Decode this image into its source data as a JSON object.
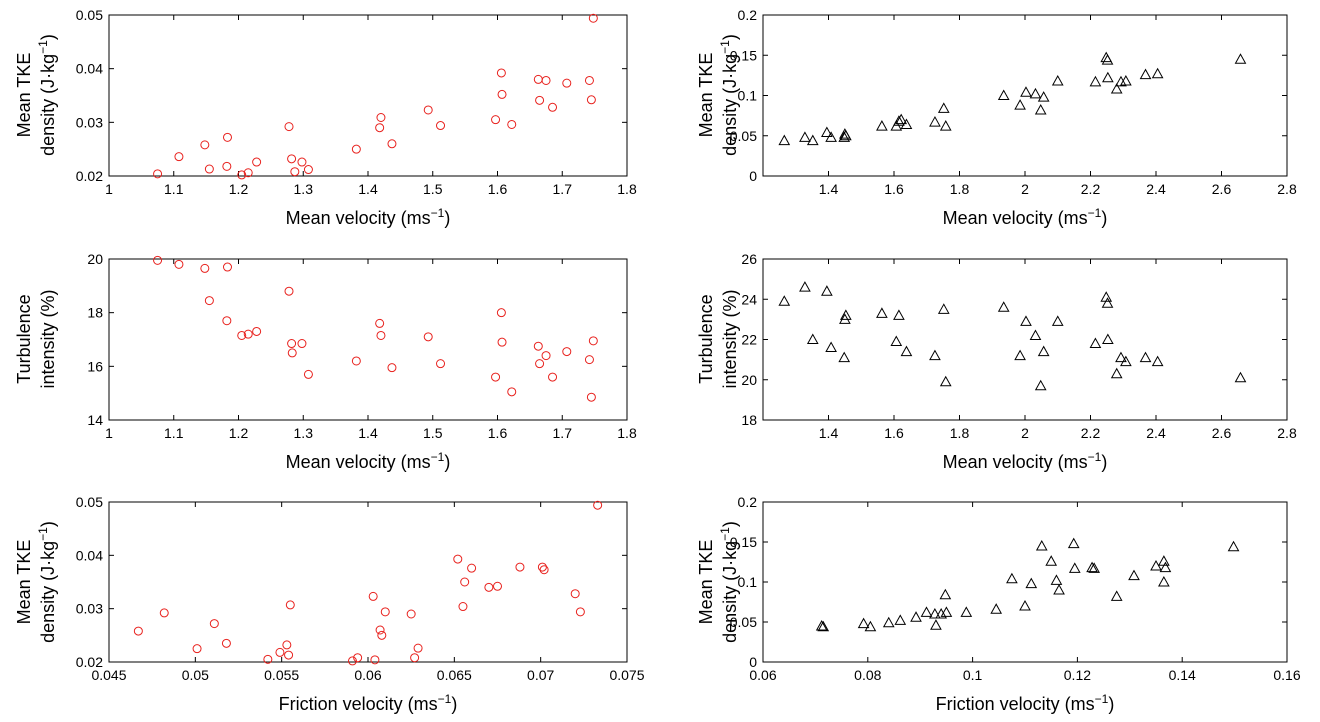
{
  "chart_data": [
    {
      "type": "scatter",
      "xlabel": "Mean velocity (ms",
      "xlabel_sup": "−1",
      "xlabel_end": ")",
      "ylabel_line1": "Mean TKE",
      "ylabel_line2": "density (J·kg",
      "ylabel_sup": "−1",
      "ylabel_end": ")",
      "xlim": [
        1,
        1.8
      ],
      "ylim": [
        0.02,
        0.05
      ],
      "xticks": [
        "1",
        "1.1",
        "1.2",
        "1.3",
        "1.4",
        "1.5",
        "1.6",
        "1.7",
        "1.8"
      ],
      "yticks": [
        "0.02",
        "0.03",
        "0.04",
        "0.05"
      ],
      "marker": "circle",
      "color": "#e8211d",
      "series": [
        {
          "points": [
            [
              1.075,
              0.0204
            ],
            [
              1.108,
              0.0236
            ],
            [
              1.148,
              0.0258
            ],
            [
              1.155,
              0.0213
            ],
            [
              1.182,
              0.0218
            ],
            [
              1.183,
              0.0272
            ],
            [
              1.205,
              0.0202
            ],
            [
              1.215,
              0.0206
            ],
            [
              1.228,
              0.0226
            ],
            [
              1.278,
              0.0292
            ],
            [
              1.282,
              0.0232
            ],
            [
              1.287,
              0.0208
            ],
            [
              1.298,
              0.0226
            ],
            [
              1.308,
              0.0212
            ],
            [
              1.382,
              0.025
            ],
            [
              1.418,
              0.029
            ],
            [
              1.42,
              0.0309
            ],
            [
              1.437,
              0.026
            ],
            [
              1.493,
              0.0323
            ],
            [
              1.512,
              0.0294
            ],
            [
              1.597,
              0.0305
            ],
            [
              1.606,
              0.0392
            ],
            [
              1.607,
              0.0352
            ],
            [
              1.622,
              0.0296
            ],
            [
              1.663,
              0.038
            ],
            [
              1.665,
              0.0341
            ],
            [
              1.675,
              0.0378
            ],
            [
              1.685,
              0.0328
            ],
            [
              1.707,
              0.0373
            ],
            [
              1.742,
              0.0378
            ],
            [
              1.745,
              0.0342
            ],
            [
              1.748,
              0.0494
            ]
          ]
        }
      ]
    },
    {
      "type": "scatter",
      "xlabel": "Mean velocity (ms",
      "xlabel_sup": "−1",
      "xlabel_end": ")",
      "ylabel_line1": "Mean TKE",
      "ylabel_line2": "density (J·kg",
      "ylabel_sup": "−1",
      "ylabel_end": ")",
      "xlim": [
        1.2,
        2.8
      ],
      "ylim": [
        0,
        0.2
      ],
      "xticks": [
        "1.4",
        "1.6",
        "1.8",
        "2",
        "2.2",
        "2.4",
        "2.6",
        "2.8"
      ],
      "yticks": [
        "0",
        "0.05",
        "0.1",
        "0.15",
        "0.2"
      ],
      "marker": "triangle",
      "color": "#000000",
      "series": [
        {
          "points": [
            [
              1.265,
              0.044
            ],
            [
              1.328,
              0.048
            ],
            [
              1.352,
              0.044
            ],
            [
              1.395,
              0.054
            ],
            [
              1.408,
              0.048
            ],
            [
              1.448,
              0.048
            ],
            [
              1.45,
              0.052
            ],
            [
              1.453,
              0.05
            ],
            [
              1.563,
              0.062
            ],
            [
              1.607,
              0.062
            ],
            [
              1.615,
              0.068
            ],
            [
              1.622,
              0.07
            ],
            [
              1.638,
              0.064
            ],
            [
              1.725,
              0.067
            ],
            [
              1.752,
              0.084
            ],
            [
              1.758,
              0.062
            ],
            [
              1.935,
              0.1
            ],
            [
              1.985,
              0.088
            ],
            [
              2.003,
              0.104
            ],
            [
              2.032,
              0.102
            ],
            [
              2.048,
              0.082
            ],
            [
              2.057,
              0.098
            ],
            [
              2.1,
              0.118
            ],
            [
              2.215,
              0.117
            ],
            [
              2.248,
              0.147
            ],
            [
              2.252,
              0.144
            ],
            [
              2.253,
              0.122
            ],
            [
              2.28,
              0.108
            ],
            [
              2.293,
              0.117
            ],
            [
              2.308,
              0.118
            ],
            [
              2.368,
              0.126
            ],
            [
              2.405,
              0.127
            ],
            [
              2.658,
              0.145
            ]
          ]
        }
      ]
    },
    {
      "type": "scatter",
      "xlabel": "Mean velocity (ms",
      "xlabel_sup": "−1",
      "xlabel_end": ")",
      "ylabel_line1": "Turbulence",
      "ylabel_line2": "intensity (%)",
      "ylabel_sup": "",
      "ylabel_end": "",
      "xlim": [
        1,
        1.8
      ],
      "ylim": [
        14,
        20
      ],
      "xticks": [
        "1",
        "1.1",
        "1.2",
        "1.3",
        "1.4",
        "1.5",
        "1.6",
        "1.7",
        "1.8"
      ],
      "yticks": [
        "14",
        "16",
        "18",
        "20"
      ],
      "marker": "circle",
      "color": "#e8211d",
      "series": [
        {
          "points": [
            [
              1.075,
              19.95
            ],
            [
              1.108,
              19.8
            ],
            [
              1.148,
              19.65
            ],
            [
              1.155,
              18.45
            ],
            [
              1.182,
              17.7
            ],
            [
              1.183,
              19.7
            ],
            [
              1.205,
              17.15
            ],
            [
              1.215,
              17.2
            ],
            [
              1.228,
              17.3
            ],
            [
              1.278,
              18.8
            ],
            [
              1.282,
              16.85
            ],
            [
              1.283,
              16.5
            ],
            [
              1.298,
              16.85
            ],
            [
              1.308,
              15.7
            ],
            [
              1.382,
              16.2
            ],
            [
              1.418,
              17.6
            ],
            [
              1.42,
              17.15
            ],
            [
              1.437,
              15.95
            ],
            [
              1.493,
              17.1
            ],
            [
              1.512,
              16.1
            ],
            [
              1.597,
              15.6
            ],
            [
              1.606,
              18.0
            ],
            [
              1.607,
              16.9
            ],
            [
              1.622,
              15.05
            ],
            [
              1.663,
              16.75
            ],
            [
              1.665,
              16.1
            ],
            [
              1.675,
              16.4
            ],
            [
              1.685,
              15.6
            ],
            [
              1.707,
              16.55
            ],
            [
              1.742,
              16.25
            ],
            [
              1.745,
              14.85
            ],
            [
              1.748,
              16.95
            ]
          ]
        }
      ]
    },
    {
      "type": "scatter",
      "xlabel": "Mean velocity (ms",
      "xlabel_sup": "−1",
      "xlabel_end": ")",
      "ylabel_line1": "Turbulence",
      "ylabel_line2": "intensity (%)",
      "ylabel_sup": "",
      "ylabel_end": "",
      "xlim": [
        1.2,
        2.8
      ],
      "ylim": [
        18,
        26
      ],
      "xticks": [
        "1.4",
        "1.6",
        "1.8",
        "2",
        "2.2",
        "2.4",
        "2.6",
        "2.8"
      ],
      "yticks": [
        "18",
        "20",
        "22",
        "24",
        "26"
      ],
      "marker": "triangle",
      "color": "#000000",
      "series": [
        {
          "points": [
            [
              1.265,
              23.9
            ],
            [
              1.328,
              24.6
            ],
            [
              1.352,
              22.0
            ],
            [
              1.395,
              24.4
            ],
            [
              1.408,
              21.6
            ],
            [
              1.448,
              21.1
            ],
            [
              1.45,
              23.0
            ],
            [
              1.453,
              23.2
            ],
            [
              1.563,
              23.3
            ],
            [
              1.607,
              21.9
            ],
            [
              1.615,
              23.2
            ],
            [
              1.638,
              21.4
            ],
            [
              1.725,
              21.2
            ],
            [
              1.752,
              23.5
            ],
            [
              1.758,
              19.9
            ],
            [
              1.935,
              23.6
            ],
            [
              1.985,
              21.2
            ],
            [
              2.003,
              22.9
            ],
            [
              2.032,
              22.2
            ],
            [
              2.048,
              19.7
            ],
            [
              2.057,
              21.4
            ],
            [
              2.1,
              22.9
            ],
            [
              2.215,
              21.8
            ],
            [
              2.248,
              24.1
            ],
            [
              2.252,
              23.8
            ],
            [
              2.253,
              22.0
            ],
            [
              2.28,
              20.3
            ],
            [
              2.293,
              21.1
            ],
            [
              2.308,
              20.9
            ],
            [
              2.368,
              21.1
            ],
            [
              2.405,
              20.9
            ],
            [
              2.658,
              20.1
            ]
          ]
        }
      ]
    },
    {
      "type": "scatter",
      "xlabel": "Friction velocity (ms",
      "xlabel_sup": "−1",
      "xlabel_end": ")",
      "ylabel_line1": "Mean TKE",
      "ylabel_line2": "density (J·kg",
      "ylabel_sup": "−1",
      "ylabel_end": ")",
      "xlim": [
        0.045,
        0.075
      ],
      "ylim": [
        0.02,
        0.05
      ],
      "xticks": [
        "0.045",
        "0.05",
        "0.055",
        "0.06",
        "0.065",
        "0.07",
        "0.075"
      ],
      "yticks": [
        "0.02",
        "0.03",
        "0.04",
        "0.05"
      ],
      "marker": "circle",
      "color": "#e8211d",
      "series": [
        {
          "points": [
            [
              0.0467,
              0.0258
            ],
            [
              0.0482,
              0.0292
            ],
            [
              0.0501,
              0.0225
            ],
            [
              0.0511,
              0.0272
            ],
            [
              0.0518,
              0.0235
            ],
            [
              0.0542,
              0.0205
            ],
            [
              0.0549,
              0.0218
            ],
            [
              0.0553,
              0.0232
            ],
            [
              0.0554,
              0.0213
            ],
            [
              0.0555,
              0.0307
            ],
            [
              0.0591,
              0.0202
            ],
            [
              0.0594,
              0.0208
            ],
            [
              0.0603,
              0.0323
            ],
            [
              0.0604,
              0.0204
            ],
            [
              0.0607,
              0.026
            ],
            [
              0.0608,
              0.025
            ],
            [
              0.061,
              0.0294
            ],
            [
              0.0625,
              0.029
            ],
            [
              0.0627,
              0.0208
            ],
            [
              0.0629,
              0.0226
            ],
            [
              0.0652,
              0.0393
            ],
            [
              0.0655,
              0.0304
            ],
            [
              0.0656,
              0.035
            ],
            [
              0.066,
              0.0376
            ],
            [
              0.067,
              0.034
            ],
            [
              0.0675,
              0.0342
            ],
            [
              0.0688,
              0.0378
            ],
            [
              0.0701,
              0.0378
            ],
            [
              0.0702,
              0.0373
            ],
            [
              0.072,
              0.0328
            ],
            [
              0.0723,
              0.0294
            ],
            [
              0.0733,
              0.0494
            ]
          ]
        }
      ]
    },
    {
      "type": "scatter",
      "xlabel": "Friction velocity (ms",
      "xlabel_sup": "−1",
      "xlabel_end": ")",
      "ylabel_line1": "Mean TKE",
      "ylabel_line2": "density (J·kg",
      "ylabel_sup": "−1",
      "ylabel_end": ")",
      "xlim": [
        0.06,
        0.16
      ],
      "ylim": [
        0,
        0.2
      ],
      "xticks": [
        "0.06",
        "0.08",
        "0.1",
        "0.12",
        "0.14",
        "0.16"
      ],
      "yticks": [
        "0",
        "0.05",
        "0.1",
        "0.15",
        "0.2"
      ],
      "marker": "triangle",
      "color": "#000000",
      "series": [
        {
          "points": [
            [
              0.0712,
              0.045
            ],
            [
              0.0715,
              0.044
            ],
            [
              0.0792,
              0.048
            ],
            [
              0.0805,
              0.044
            ],
            [
              0.084,
              0.049
            ],
            [
              0.0862,
              0.052
            ],
            [
              0.0892,
              0.056
            ],
            [
              0.0912,
              0.062
            ],
            [
              0.0928,
              0.06
            ],
            [
              0.093,
              0.046
            ],
            [
              0.094,
              0.06
            ],
            [
              0.0948,
              0.084
            ],
            [
              0.095,
              0.062
            ],
            [
              0.0988,
              0.062
            ],
            [
              0.1045,
              0.066
            ],
            [
              0.1075,
              0.104
            ],
            [
              0.11,
              0.07
            ],
            [
              0.1112,
              0.098
            ],
            [
              0.1132,
              0.145
            ],
            [
              0.115,
              0.126
            ],
            [
              0.116,
              0.102
            ],
            [
              0.1165,
              0.09
            ],
            [
              0.1193,
              0.148
            ],
            [
              0.1195,
              0.117
            ],
            [
              0.1228,
              0.118
            ],
            [
              0.1232,
              0.117
            ],
            [
              0.1275,
              0.082
            ],
            [
              0.1308,
              0.108
            ],
            [
              0.135,
              0.12
            ],
            [
              0.1365,
              0.126
            ],
            [
              0.1368,
              0.118
            ],
            [
              0.1365,
              0.1
            ],
            [
              0.1498,
              0.144
            ]
          ]
        }
      ]
    }
  ]
}
